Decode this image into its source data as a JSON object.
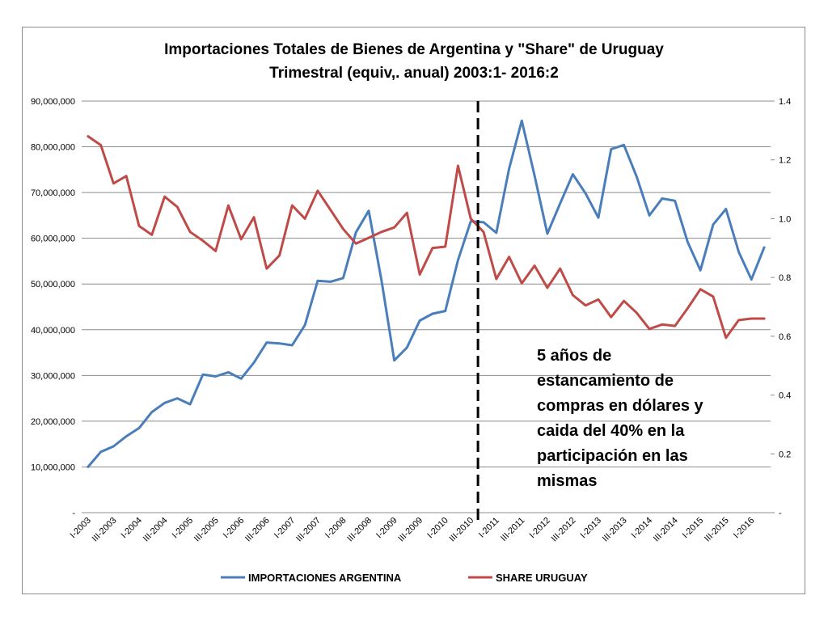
{
  "colors": {
    "importaciones": "#4a7ebb",
    "share": "#be4b48",
    "grid": "#8c8c8c",
    "divider": "#000000"
  },
  "chart_data": {
    "type": "line",
    "title_lines": [
      "Importaciones Totales de Bienes de Argentina y \"Share\" de Uruguay",
      "Trimestral  (equiv,. anual) 2003:1- 2016:2"
    ],
    "x": [
      "I-2003",
      "II-2003",
      "III-2003",
      "IV-2003",
      "I-2004",
      "II-2004",
      "III-2004",
      "IV-2004",
      "I-2005",
      "II-2005",
      "III-2005",
      "IV-2005",
      "I-2006",
      "II-2006",
      "III-2006",
      "IV-2006",
      "I-2007",
      "II-2007",
      "III-2007",
      "IV-2007",
      "I-2008",
      "II-2008",
      "III-2008",
      "IV-2008",
      "I-2009",
      "II-2009",
      "III-2009",
      "IV-2009",
      "I-2010",
      "II-2010",
      "III-2010",
      "IV-2010",
      "I-2011",
      "II-2011",
      "III-2011",
      "IV-2011",
      "I-2012",
      "II-2012",
      "III-2012",
      "IV-2012",
      "I-2013",
      "II-2013",
      "III-2013",
      "IV-2013",
      "I-2014",
      "II-2014",
      "III-2014",
      "IV-2014",
      "I-2015",
      "II-2015",
      "III-2015",
      "IV-2015",
      "I-2016",
      "II-2016"
    ],
    "x_tick_labels": [
      "I-2003",
      "III-2003",
      "I-2004",
      "III-2004",
      "I-2005",
      "III-2005",
      "I-2006",
      "III-2006",
      "I-2007",
      "III-2007",
      "I-2008",
      "III-2008",
      "I-2009",
      "III-2009",
      "I-2010",
      "III-2010",
      "I-2011",
      "III-2011",
      "I-2012",
      "III-2012",
      "I-2013",
      "III-2013",
      "I-2014",
      "III-2014",
      "I-2015",
      "III-2015",
      "I-2016"
    ],
    "y_left": {
      "range": [
        0,
        90000000
      ],
      "tick_labels": [
        "-",
        "10,000,000",
        "20,000,000",
        "30,000,000",
        "40,000,000",
        "50,000,000",
        "60,000,000",
        "70,000,000",
        "80,000,000",
        "90,000,000"
      ]
    },
    "y_right": {
      "range": [
        0,
        1.4
      ],
      "tick_labels": [
        "-",
        "0.2",
        "0.4",
        "0.6",
        "0.8",
        "1.0",
        "1.2",
        "1.4"
      ]
    },
    "grid": true,
    "legend_position": "bottom",
    "series": [
      {
        "name": "IMPORTACIONES ARGENTINA",
        "axis": "left",
        "values": [
          10000000,
          13300000,
          14500000,
          16700000,
          18500000,
          22000000,
          24000000,
          25000000,
          23700000,
          30200000,
          29800000,
          30700000,
          29300000,
          32800000,
          37200000,
          37000000,
          36600000,
          41000000,
          50700000,
          50500000,
          51300000,
          61300000,
          66000000,
          50800000,
          33300000,
          36100000,
          42000000,
          43500000,
          44100000,
          55200000,
          63700000,
          63500000,
          61200000,
          75200000,
          85700000,
          73700000,
          61000000,
          67600000,
          74000000,
          69800000,
          64500000,
          79500000,
          80400000,
          73500000,
          65000000,
          68700000,
          68200000,
          59200000,
          53000000,
          63000000,
          66400000,
          57000000,
          51000000,
          58000000
        ]
      },
      {
        "name": "SHARE URUGUAY",
        "axis": "right",
        "values": [
          1.28,
          1.25,
          1.12,
          1.145,
          0.975,
          0.945,
          1.075,
          1.04,
          0.955,
          0.925,
          0.89,
          1.045,
          0.93,
          1.005,
          0.83,
          0.875,
          1.045,
          1.0,
          1.095,
          1.03,
          0.965,
          0.915,
          0.935,
          0.955,
          0.97,
          1.02,
          0.81,
          0.9,
          0.905,
          1.18,
          1.0,
          0.955,
          0.795,
          0.87,
          0.78,
          0.84,
          0.765,
          0.83,
          0.74,
          0.705,
          0.725,
          0.665,
          0.72,
          0.68,
          0.625,
          0.64,
          0.635,
          0.695,
          0.76,
          0.735,
          0.595,
          0.655,
          0.66,
          0.66
        ]
      }
    ],
    "divider_at": "III-2010",
    "annotation_lines": [
      "5 años de",
      "estancamiento de",
      "compras en dólares y",
      "caida del 40% en la",
      "participación en las",
      "mismas"
    ]
  }
}
